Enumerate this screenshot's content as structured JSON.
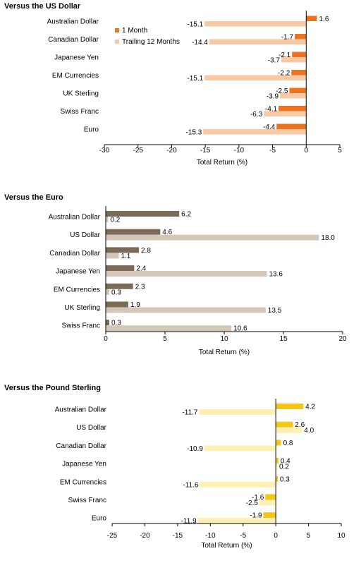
{
  "chart_data": [
    {
      "type": "bar",
      "orientation": "horizontal",
      "title": "Versus the US Dollar",
      "xlabel": "Total Return (%)",
      "xlim": [
        -30,
        5
      ],
      "xticks": [
        -30,
        -25,
        -20,
        -15,
        -10,
        -5,
        0,
        5
      ],
      "categories": [
        "Australian Dollar",
        "Canadian Dollar",
        "Japanese Yen",
        "EM Currencies",
        "UK Sterling",
        "Swiss Franc",
        "Euro"
      ],
      "series": [
        {
          "name": "1 Month",
          "values": [
            1.6,
            -1.7,
            -2.1,
            -2.2,
            -2.5,
            -4.1,
            -4.4
          ],
          "color": "#ee7320"
        },
        {
          "name": "Trailing 12 Months",
          "values": [
            -15.1,
            -14.4,
            -3.7,
            -15.1,
            -3.9,
            -6.3,
            -15.3
          ],
          "color": "#f9c9a3"
        }
      ],
      "legend": "inside-upper-left",
      "grid": false
    },
    {
      "type": "bar",
      "orientation": "horizontal",
      "title": "Versus the Euro",
      "xlabel": "Total Return (%)",
      "xlim": [
        0,
        20
      ],
      "xticks": [
        0,
        5,
        10,
        15,
        20
      ],
      "categories": [
        "Australian Dollar",
        "US Dollar",
        "Canadian Dollar",
        "Japanese Yen",
        "EM Currencies",
        "UK Sterling",
        "Swiss Franc"
      ],
      "series": [
        {
          "values": [
            6.2,
            4.6,
            2.8,
            2.4,
            2.3,
            1.9,
            0.3
          ],
          "color": "#7a6a58"
        },
        {
          "values": [
            0.2,
            18.0,
            1.1,
            13.6,
            0.3,
            13.5,
            10.6
          ],
          "color": "#d4c7b9"
        }
      ],
      "grid": false
    },
    {
      "type": "bar",
      "orientation": "horizontal",
      "title": "Versus the Pound Sterling",
      "xlabel": "Total Return (%)",
      "xlim": [
        -25,
        10
      ],
      "xticks": [
        -25,
        -20,
        -15,
        -10,
        -5,
        0,
        5,
        10
      ],
      "categories": [
        "Australian Dollar",
        "US Dollar",
        "Canadian Dollar",
        "Japanese Yen",
        "EM Currencies",
        "Swiss Franc",
        "Euro"
      ],
      "series": [
        {
          "values": [
            4.2,
            2.6,
            0.8,
            0.4,
            0.3,
            -1.6,
            -1.9
          ],
          "color": "#f5c518"
        },
        {
          "values": [
            -11.7,
            4.0,
            -10.9,
            0.2,
            -11.6,
            -2.5,
            -11.9
          ],
          "color": "#fdf0b2"
        }
      ],
      "grid": false
    }
  ]
}
